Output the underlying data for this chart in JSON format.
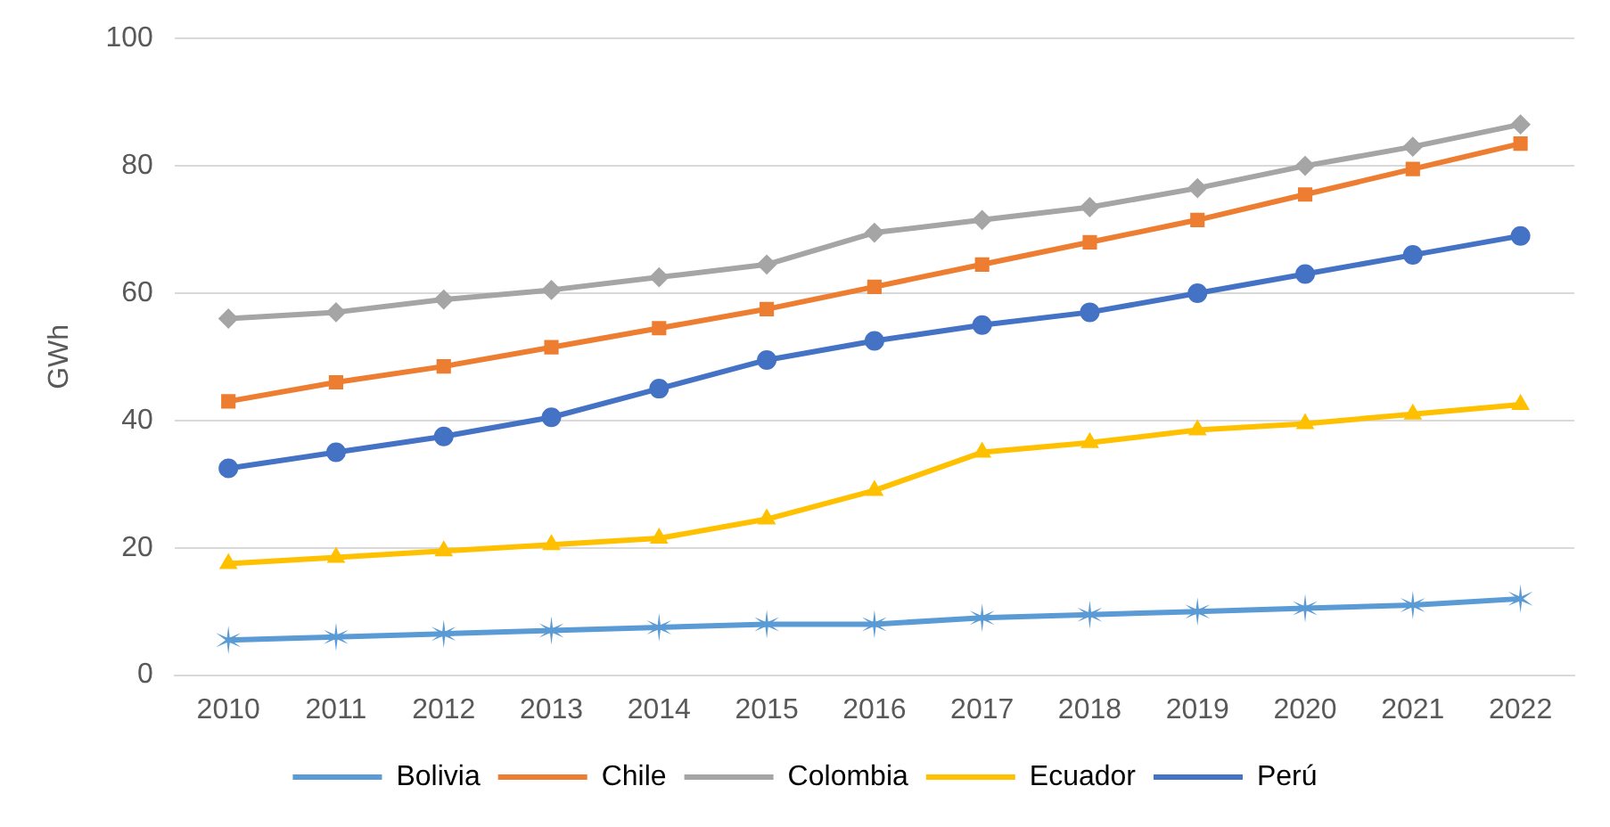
{
  "chart_data": {
    "type": "line",
    "ylabel": "GWh",
    "categories": [
      "2010",
      "2011",
      "2012",
      "2013",
      "2014",
      "2015",
      "2016",
      "2017",
      "2018",
      "2019",
      "2020",
      "2021",
      "2022"
    ],
    "series": [
      {
        "name": "Bolivia",
        "color": "#5b9bd5",
        "marker": "cross",
        "values": [
          5.5,
          6,
          6.5,
          7,
          7.5,
          8,
          8,
          9,
          9.5,
          10,
          10.5,
          11,
          12
        ]
      },
      {
        "name": "Chile",
        "color": "#ed7d31",
        "marker": "square",
        "values": [
          43,
          46,
          48.5,
          51.5,
          54.5,
          57.5,
          61,
          64.5,
          68,
          71.5,
          75.5,
          79.5,
          83.5
        ]
      },
      {
        "name": "Colombia",
        "color": "#a5a5a5",
        "marker": "diamond",
        "values": [
          56,
          57,
          59,
          60.5,
          62.5,
          64.5,
          69.5,
          71.5,
          73.5,
          76.5,
          80,
          83,
          86.5
        ]
      },
      {
        "name": "Ecuador",
        "color": "#ffc000",
        "marker": "triangle",
        "values": [
          17.5,
          18.5,
          19.5,
          20.5,
          21.5,
          24.5,
          29,
          35,
          36.5,
          38.5,
          39.5,
          41,
          42.5
        ]
      },
      {
        "name": "Perú",
        "color": "#4472c4",
        "marker": "circle",
        "values": [
          32.5,
          35,
          37.5,
          40.5,
          45,
          49.5,
          52.5,
          55,
          57,
          60,
          63,
          66,
          69
        ]
      }
    ],
    "ylim": [
      0,
      100
    ],
    "yticks": [
      0,
      20,
      40,
      60,
      80,
      100
    ],
    "grid": "y",
    "legend": "bottom",
    "line_style": "solid"
  }
}
